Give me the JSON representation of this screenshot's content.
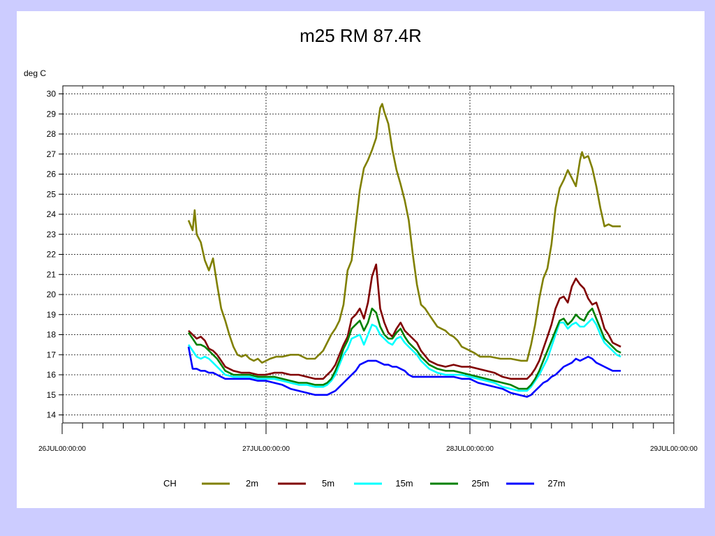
{
  "chart_data": {
    "type": "line",
    "title": "m25 RM 87.4R",
    "ylabel": "deg C",
    "xlabel": "",
    "ylim": [
      13.6,
      30.4
    ],
    "yticks": [
      14,
      15,
      16,
      17,
      18,
      19,
      20,
      21,
      22,
      23,
      24,
      25,
      26,
      27,
      28,
      29,
      30
    ],
    "xlim": [
      0,
      3
    ],
    "xticks": [
      {
        "value": 0,
        "label": "26JUL00:00:00"
      },
      {
        "value": 1,
        "label": "27JUL00:00:00"
      },
      {
        "value": 2,
        "label": "28JUL00:00:00"
      },
      {
        "value": 3,
        "label": "29JUL00:00:00"
      }
    ],
    "grid": true,
    "legend_title": "CH",
    "legend_position": "bottom",
    "series": [
      {
        "name": "2m",
        "color": "#808000",
        "x": [
          0.62,
          0.64,
          0.65,
          0.66,
          0.68,
          0.7,
          0.72,
          0.74,
          0.76,
          0.78,
          0.8,
          0.82,
          0.84,
          0.86,
          0.88,
          0.9,
          0.92,
          0.94,
          0.96,
          0.98,
          1.0,
          1.02,
          1.05,
          1.08,
          1.12,
          1.16,
          1.2,
          1.24,
          1.28,
          1.3,
          1.32,
          1.34,
          1.36,
          1.38,
          1.4,
          1.42,
          1.44,
          1.46,
          1.48,
          1.5,
          1.52,
          1.54,
          1.55,
          1.56,
          1.57,
          1.58,
          1.6,
          1.62,
          1.64,
          1.66,
          1.68,
          1.7,
          1.72,
          1.74,
          1.76,
          1.78,
          1.8,
          1.82,
          1.84,
          1.86,
          1.88,
          1.9,
          1.92,
          1.94,
          1.96,
          1.98,
          2.0,
          2.02,
          2.05,
          2.1,
          2.15,
          2.2,
          2.25,
          2.28,
          2.3,
          2.32,
          2.34,
          2.36,
          2.38,
          2.4,
          2.42,
          2.44,
          2.46,
          2.48,
          2.5,
          2.52,
          2.54,
          2.55,
          2.56,
          2.58,
          2.6,
          2.62,
          2.64,
          2.66,
          2.68,
          2.7,
          2.72,
          2.74
        ],
        "values": [
          23.7,
          23.2,
          24.2,
          23.0,
          22.6,
          21.7,
          21.2,
          21.8,
          20.5,
          19.3,
          18.7,
          18.0,
          17.4,
          17.0,
          16.9,
          17.0,
          16.8,
          16.7,
          16.8,
          16.6,
          16.7,
          16.8,
          16.9,
          16.9,
          17.0,
          17.0,
          16.8,
          16.8,
          17.2,
          17.6,
          18.0,
          18.3,
          18.7,
          19.5,
          21.2,
          21.7,
          23.5,
          25.2,
          26.3,
          26.7,
          27.2,
          27.8,
          28.6,
          29.3,
          29.5,
          29.1,
          28.5,
          27.2,
          26.2,
          25.5,
          24.7,
          23.7,
          22.0,
          20.5,
          19.5,
          19.3,
          19.0,
          18.7,
          18.4,
          18.3,
          18.2,
          18.0,
          17.9,
          17.7,
          17.4,
          17.3,
          17.2,
          17.1,
          16.9,
          16.9,
          16.8,
          16.8,
          16.7,
          16.7,
          17.5,
          18.5,
          19.8,
          20.8,
          21.3,
          22.5,
          24.3,
          25.3,
          25.7,
          26.2,
          25.8,
          25.4,
          26.7,
          27.1,
          26.8,
          26.9,
          26.3,
          25.4,
          24.3,
          23.4,
          23.5,
          23.4,
          23.4,
          23.4
        ]
      },
      {
        "name": "5m",
        "color": "#800000",
        "x": [
          0.62,
          0.64,
          0.66,
          0.68,
          0.7,
          0.72,
          0.74,
          0.76,
          0.78,
          0.8,
          0.84,
          0.88,
          0.92,
          0.96,
          1.0,
          1.04,
          1.08,
          1.12,
          1.16,
          1.2,
          1.24,
          1.28,
          1.3,
          1.32,
          1.34,
          1.36,
          1.38,
          1.4,
          1.42,
          1.44,
          1.46,
          1.48,
          1.5,
          1.52,
          1.54,
          1.56,
          1.58,
          1.6,
          1.62,
          1.64,
          1.66,
          1.68,
          1.7,
          1.72,
          1.74,
          1.76,
          1.8,
          1.84,
          1.88,
          1.92,
          1.96,
          2.0,
          2.04,
          2.08,
          2.12,
          2.16,
          2.2,
          2.24,
          2.28,
          2.3,
          2.32,
          2.34,
          2.36,
          2.38,
          2.4,
          2.42,
          2.44,
          2.46,
          2.48,
          2.5,
          2.52,
          2.54,
          2.56,
          2.58,
          2.6,
          2.62,
          2.64,
          2.66,
          2.68,
          2.7,
          2.72,
          2.74
        ],
        "values": [
          18.2,
          18.0,
          17.8,
          17.9,
          17.7,
          17.3,
          17.2,
          17.0,
          16.7,
          16.4,
          16.2,
          16.1,
          16.1,
          16.0,
          16.0,
          16.1,
          16.1,
          16.0,
          16.0,
          15.9,
          15.8,
          15.8,
          16.0,
          16.2,
          16.5,
          17.0,
          17.5,
          17.9,
          18.8,
          19.0,
          19.3,
          18.8,
          19.6,
          20.9,
          21.5,
          19.3,
          18.6,
          18.1,
          17.9,
          18.3,
          18.6,
          18.2,
          18.0,
          17.8,
          17.6,
          17.2,
          16.7,
          16.5,
          16.4,
          16.5,
          16.4,
          16.4,
          16.3,
          16.2,
          16.1,
          15.9,
          15.8,
          15.8,
          15.8,
          16.0,
          16.3,
          16.7,
          17.3,
          17.9,
          18.5,
          19.3,
          19.8,
          19.9,
          19.6,
          20.4,
          20.8,
          20.5,
          20.3,
          19.8,
          19.5,
          19.6,
          19.0,
          18.3,
          18.0,
          17.6,
          17.5,
          17.4
        ]
      },
      {
        "name": "15m",
        "color": "#00ffff",
        "x": [
          0.62,
          0.64,
          0.66,
          0.68,
          0.7,
          0.72,
          0.74,
          0.76,
          0.78,
          0.8,
          0.84,
          0.88,
          0.92,
          0.96,
          1.0,
          1.04,
          1.08,
          1.12,
          1.16,
          1.2,
          1.24,
          1.28,
          1.3,
          1.32,
          1.34,
          1.36,
          1.38,
          1.4,
          1.42,
          1.44,
          1.46,
          1.48,
          1.5,
          1.52,
          1.54,
          1.56,
          1.58,
          1.6,
          1.62,
          1.64,
          1.66,
          1.68,
          1.7,
          1.72,
          1.74,
          1.76,
          1.8,
          1.84,
          1.88,
          1.92,
          1.96,
          2.0,
          2.04,
          2.08,
          2.12,
          2.16,
          2.2,
          2.24,
          2.28,
          2.3,
          2.32,
          2.34,
          2.36,
          2.38,
          2.4,
          2.42,
          2.44,
          2.46,
          2.48,
          2.5,
          2.52,
          2.54,
          2.56,
          2.58,
          2.6,
          2.62,
          2.64,
          2.66,
          2.68,
          2.7,
          2.72,
          2.74
        ],
        "values": [
          17.5,
          17.2,
          16.9,
          16.8,
          16.9,
          16.8,
          16.6,
          16.4,
          16.2,
          16.0,
          15.9,
          15.9,
          15.9,
          15.8,
          15.8,
          15.8,
          15.7,
          15.6,
          15.5,
          15.5,
          15.4,
          15.4,
          15.5,
          15.7,
          16.0,
          16.5,
          17.0,
          17.3,
          17.8,
          17.9,
          18.0,
          17.5,
          18.0,
          18.5,
          18.4,
          18.0,
          17.8,
          17.6,
          17.5,
          17.8,
          17.9,
          17.6,
          17.4,
          17.2,
          17.0,
          16.7,
          16.3,
          16.1,
          16.0,
          16.0,
          16.0,
          15.9,
          15.8,
          15.7,
          15.6,
          15.4,
          15.3,
          15.2,
          15.2,
          15.4,
          15.7,
          16.0,
          16.4,
          16.8,
          17.4,
          18.0,
          18.6,
          18.6,
          18.3,
          18.5,
          18.6,
          18.4,
          18.4,
          18.6,
          18.8,
          18.5,
          18.0,
          17.6,
          17.4,
          17.2,
          17.0,
          16.9
        ]
      },
      {
        "name": "25m",
        "color": "#008000",
        "x": [
          0.62,
          0.64,
          0.66,
          0.68,
          0.7,
          0.72,
          0.74,
          0.76,
          0.78,
          0.8,
          0.84,
          0.88,
          0.92,
          0.96,
          1.0,
          1.04,
          1.08,
          1.12,
          1.16,
          1.2,
          1.24,
          1.28,
          1.3,
          1.32,
          1.34,
          1.36,
          1.38,
          1.4,
          1.42,
          1.44,
          1.46,
          1.48,
          1.5,
          1.52,
          1.54,
          1.56,
          1.58,
          1.6,
          1.62,
          1.64,
          1.66,
          1.68,
          1.7,
          1.72,
          1.74,
          1.76,
          1.8,
          1.84,
          1.88,
          1.92,
          1.96,
          2.0,
          2.04,
          2.08,
          2.12,
          2.16,
          2.2,
          2.24,
          2.28,
          2.3,
          2.32,
          2.34,
          2.36,
          2.38,
          2.4,
          2.42,
          2.44,
          2.46,
          2.48,
          2.5,
          2.52,
          2.54,
          2.56,
          2.58,
          2.6,
          2.62,
          2.64,
          2.66,
          2.68,
          2.7,
          2.72,
          2.74
        ],
        "values": [
          18.1,
          17.8,
          17.5,
          17.5,
          17.4,
          17.2,
          17.0,
          16.8,
          16.5,
          16.2,
          16.0,
          16.0,
          16.0,
          15.9,
          15.9,
          15.9,
          15.8,
          15.7,
          15.6,
          15.6,
          15.5,
          15.5,
          15.6,
          15.8,
          16.2,
          16.7,
          17.3,
          17.7,
          18.3,
          18.5,
          18.7,
          18.2,
          18.6,
          19.3,
          19.1,
          18.4,
          18.0,
          17.8,
          17.8,
          18.1,
          18.3,
          17.9,
          17.6,
          17.4,
          17.2,
          16.9,
          16.5,
          16.3,
          16.2,
          16.2,
          16.1,
          16.0,
          15.9,
          15.8,
          15.7,
          15.6,
          15.5,
          15.3,
          15.3,
          15.5,
          15.8,
          16.2,
          16.7,
          17.2,
          17.7,
          18.2,
          18.7,
          18.8,
          18.5,
          18.7,
          19.0,
          18.8,
          18.7,
          19.1,
          19.3,
          18.8,
          18.3,
          17.8,
          17.6,
          17.4,
          17.2,
          17.1
        ]
      },
      {
        "name": "27m",
        "color": "#0000ff",
        "x": [
          0.62,
          0.64,
          0.66,
          0.68,
          0.7,
          0.72,
          0.74,
          0.76,
          0.78,
          0.8,
          0.84,
          0.88,
          0.92,
          0.96,
          1.0,
          1.04,
          1.08,
          1.12,
          1.16,
          1.2,
          1.24,
          1.28,
          1.3,
          1.32,
          1.34,
          1.36,
          1.38,
          1.4,
          1.42,
          1.44,
          1.46,
          1.48,
          1.5,
          1.52,
          1.54,
          1.56,
          1.58,
          1.6,
          1.62,
          1.64,
          1.66,
          1.68,
          1.7,
          1.72,
          1.74,
          1.76,
          1.8,
          1.84,
          1.88,
          1.92,
          1.96,
          2.0,
          2.04,
          2.08,
          2.12,
          2.16,
          2.2,
          2.24,
          2.28,
          2.3,
          2.32,
          2.34,
          2.36,
          2.38,
          2.4,
          2.42,
          2.44,
          2.46,
          2.48,
          2.5,
          2.52,
          2.54,
          2.56,
          2.58,
          2.6,
          2.62,
          2.64,
          2.66,
          2.68,
          2.7,
          2.72,
          2.74
        ],
        "values": [
          17.4,
          16.3,
          16.3,
          16.2,
          16.2,
          16.1,
          16.1,
          16.0,
          15.9,
          15.8,
          15.8,
          15.8,
          15.8,
          15.7,
          15.7,
          15.6,
          15.5,
          15.3,
          15.2,
          15.1,
          15.0,
          15.0,
          15.0,
          15.1,
          15.2,
          15.4,
          15.6,
          15.8,
          16.0,
          16.2,
          16.5,
          16.6,
          16.7,
          16.7,
          16.7,
          16.6,
          16.5,
          16.5,
          16.4,
          16.4,
          16.3,
          16.2,
          16.0,
          15.9,
          15.9,
          15.9,
          15.9,
          15.9,
          15.9,
          15.9,
          15.8,
          15.8,
          15.6,
          15.5,
          15.4,
          15.3,
          15.1,
          15.0,
          14.9,
          15.0,
          15.2,
          15.4,
          15.6,
          15.7,
          15.9,
          16.0,
          16.2,
          16.4,
          16.5,
          16.6,
          16.8,
          16.7,
          16.8,
          16.9,
          16.8,
          16.6,
          16.5,
          16.4,
          16.3,
          16.2,
          16.2,
          16.2
        ]
      }
    ]
  }
}
